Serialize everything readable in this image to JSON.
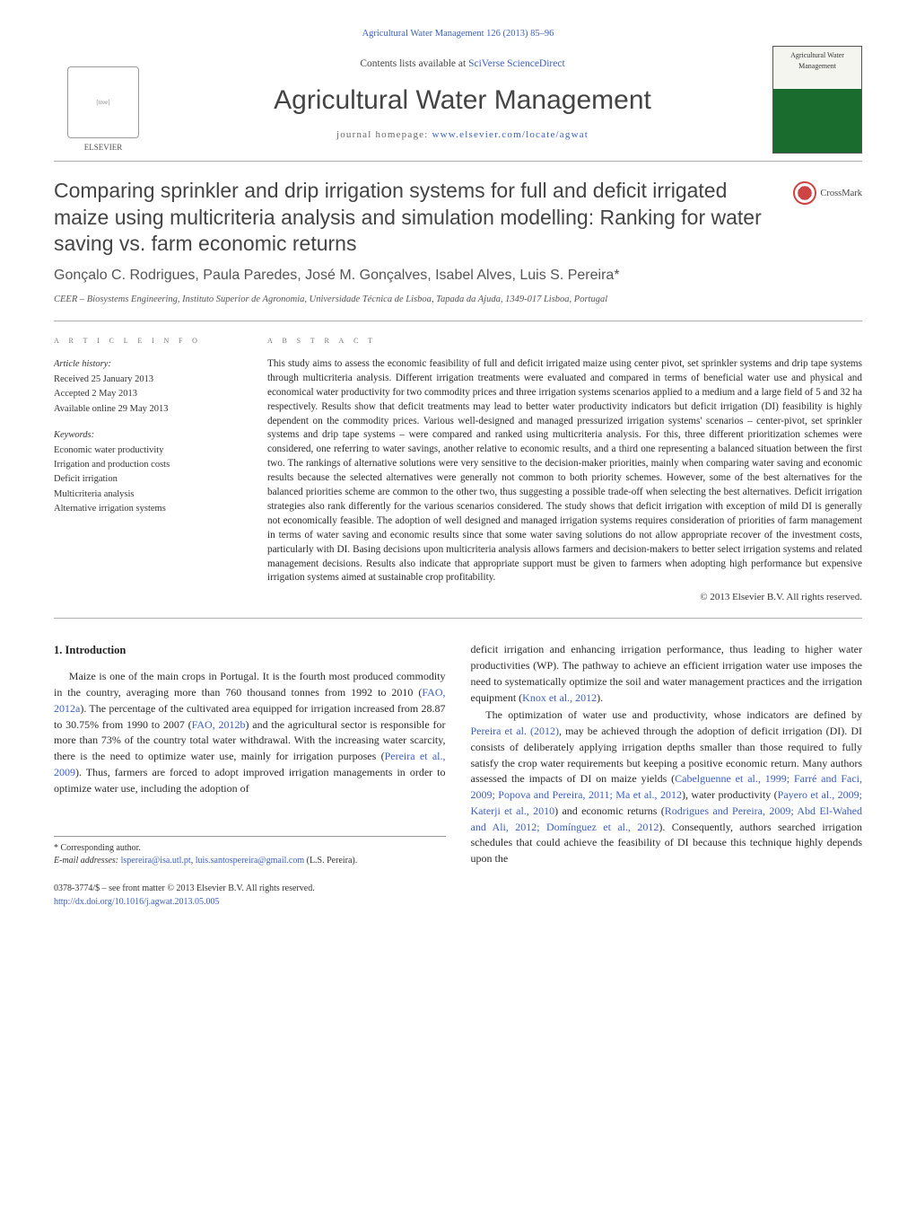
{
  "topLink": "Agricultural Water Management 126 (2013) 85–96",
  "header": {
    "contentsPrefix": "Contents lists available at ",
    "contentsLink": "SciVerse ScienceDirect",
    "journalName": "Agricultural Water Management",
    "homepagePrefix": "journal homepage: ",
    "homepageLink": "www.elsevier.com/locate/agwat",
    "elsevierLabel": "ELSEVIER",
    "coverTop": "Agricultural Water Management"
  },
  "title": "Comparing sprinkler and drip irrigation systems for full and deficit irrigated maize using multicriteria analysis and simulation modelling: Ranking for water saving vs. farm economic returns",
  "crossmark": "CrossMark",
  "authors": "Gonçalo C. Rodrigues, Paula Paredes, José M. Gonçalves, Isabel Alves, Luis S. Pereira*",
  "affiliation": "CEER – Biosystems Engineering, Instituto Superior de Agronomia, Universidade Técnica de Lisboa, Tapada da Ajuda, 1349-017 Lisboa, Portugal",
  "articleInfoLabel": "a r t i c l e   i n f o",
  "abstractLabel": "a b s t r a c t",
  "history": {
    "heading": "Article history:",
    "received": "Received 25 January 2013",
    "accepted": "Accepted 2 May 2013",
    "online": "Available online 29 May 2013"
  },
  "keywords": {
    "heading": "Keywords:",
    "items": [
      "Economic water productivity",
      "Irrigation and production costs",
      "Deficit irrigation",
      "Multicriteria analysis",
      "Alternative irrigation systems"
    ]
  },
  "abstract": "This study aims to assess the economic feasibility of full and deficit irrigated maize using center pivot, set sprinkler systems and drip tape systems through multicriteria analysis. Different irrigation treatments were evaluated and compared in terms of beneficial water use and physical and economical water productivity for two commodity prices and three irrigation systems scenarios applied to a medium and a large field of 5 and 32 ha respectively. Results show that deficit treatments may lead to better water productivity indicators but deficit irrigation (DI) feasibility is highly dependent on the commodity prices. Various well-designed and managed pressurized irrigation systems' scenarios – center-pivot, set sprinkler systems and drip tape systems – were compared and ranked using multicriteria analysis. For this, three different prioritization schemes were considered, one referring to water savings, another relative to economic results, and a third one representing a balanced situation between the first two. The rankings of alternative solutions were very sensitive to the decision-maker priorities, mainly when comparing water saving and economic results because the selected alternatives were generally not common to both priority schemes. However, some of the best alternatives for the balanced priorities scheme are common to the other two, thus suggesting a possible trade-off when selecting the best alternatives. Deficit irrigation strategies also rank differently for the various scenarios considered. The study shows that deficit irrigation with exception of mild DI is generally not economically feasible. The adoption of well designed and managed irrigation systems requires consideration of priorities of farm management in terms of water saving and economic results since that some water saving solutions do not allow appropriate recover of the investment costs, particularly with DI. Basing decisions upon multicriteria analysis allows farmers and decision-makers to better select irrigation systems and related management decisions. Results also indicate that appropriate support must be given to farmers when adopting high performance but expensive irrigation systems aimed at sustainable crop profitability.",
  "copyright": "© 2013 Elsevier B.V. All rights reserved.",
  "introHeading": "1. Introduction",
  "intro": {
    "p1_a": "Maize is one of the main crops in Portugal. It is the fourth most produced commodity in the country, averaging more than 760 thousand tonnes from 1992 to 2010 (",
    "p1_r1": "FAO, 2012a",
    "p1_b": "). The percentage of the cultivated area equipped for irrigation increased from 28.87 to 30.75% from 1990 to 2007 (",
    "p1_r2": "FAO, 2012b",
    "p1_c": ") and the agricultural sector is responsible for more than 73% of the country total water withdrawal. With the increasing water scarcity, there is the need to optimize water use, mainly for irrigation purposes (",
    "p1_r3": "Pereira et al., 2009",
    "p1_d": "). Thus, farmers are forced to adopt improved irrigation managements in order to optimize water use, including the adoption of",
    "p2_a": "deficit irrigation and enhancing irrigation performance, thus leading to higher water productivities (WP). The pathway to achieve an efficient irrigation water use imposes the need to systematically optimize the soil and water management practices and the irrigation equipment (",
    "p2_r1": "Knox et al., 2012",
    "p2_b": ").",
    "p3_a": "The optimization of water use and productivity, whose indicators are defined by ",
    "p3_r1": "Pereira et al. (2012)",
    "p3_b": ", may be achieved through the adoption of deficit irrigation (DI). DI consists of deliberately applying irrigation depths smaller than those required to fully satisfy the crop water requirements but keeping a positive economic return. Many authors assessed the impacts of DI on maize yields (",
    "p3_r2": "Cabelguenne et al., 1999; Farré and Faci, 2009; Popova and Pereira, 2011; Ma et al., 2012",
    "p3_c": "), water productivity (",
    "p3_r3": "Payero et al., 2009; Katerji et al., 2010",
    "p3_d": ") and economic returns (",
    "p3_r4": "Rodrigues and Pereira, 2009; Abd El-Wahed and Ali, 2012; Domínguez et al., 2012",
    "p3_e": "). Consequently, authors searched irrigation schedules that could achieve the feasibility of DI because this technique highly depends upon the"
  },
  "footnote": {
    "corr": "* Corresponding author.",
    "emailLabel": "E-mail addresses: ",
    "email1": "lspereira@isa.utl.pt",
    "sep": ", ",
    "email2": "luis.santospereira@gmail.com",
    "tail": " (L.S. Pereira)."
  },
  "footer": {
    "line1": "0378-3774/$ – see front matter © 2013 Elsevier B.V. All rights reserved.",
    "doi": "http://dx.doi.org/10.1016/j.agwat.2013.05.005"
  },
  "style": {
    "linkColor": "#3b5fc0",
    "textColor": "#2a2a2a",
    "ruleColor": "#b0b0b0",
    "titleFontSize": 23,
    "journalFontSize": 30,
    "bodyFontSize": 12,
    "abstractFontSize": 11.2,
    "pageWidth": 1021,
    "pageHeight": 1351
  }
}
